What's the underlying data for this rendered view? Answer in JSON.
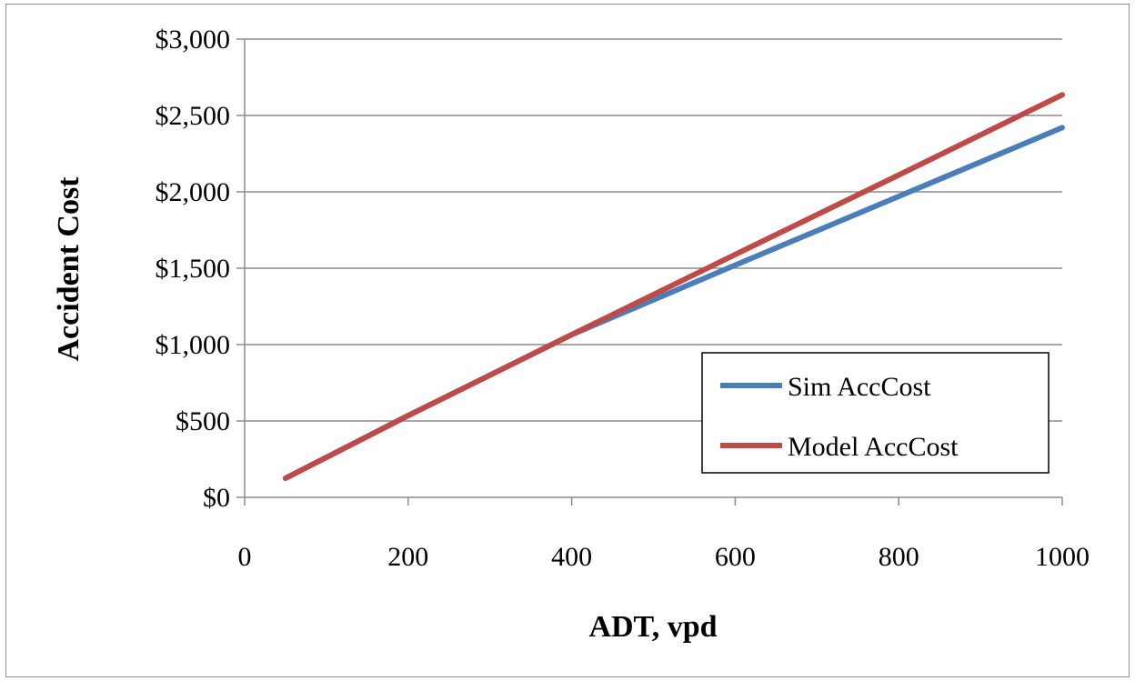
{
  "chart_data": {
    "type": "line",
    "xlabel": "ADT, vpd",
    "ylabel": "Accident Cost",
    "xlim": [
      0,
      1000
    ],
    "ylim": [
      0,
      3000
    ],
    "x_ticks": [
      0,
      200,
      400,
      600,
      800,
      1000
    ],
    "y_ticks": [
      0,
      500,
      1000,
      1500,
      2000,
      2500,
      3000
    ],
    "x_tick_labels": [
      "0",
      "200",
      "400",
      "600",
      "800",
      "1000"
    ],
    "y_tick_labels": [
      "$0",
      "$500",
      "$1,000",
      "$1,500",
      "$2,000",
      "$2,500",
      "$3,000"
    ],
    "grid": "horizontal major gridlines",
    "legend_position": "bottom-right",
    "series": [
      {
        "name": "Sim AccCost",
        "color": "#4a7ebb",
        "x": [
          50,
          200,
          400,
          600,
          800,
          1000
        ],
        "y": [
          125,
          535,
          1065,
          1520,
          1970,
          2420
        ]
      },
      {
        "name": "Model AccCost",
        "color": "#be4b48",
        "x": [
          50,
          200,
          400,
          600,
          800,
          1000
        ],
        "y": [
          125,
          535,
          1065,
          1590,
          2110,
          2635
        ]
      }
    ]
  }
}
